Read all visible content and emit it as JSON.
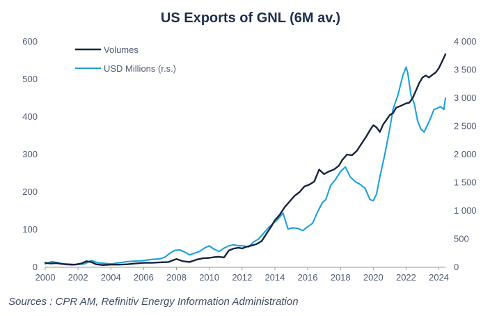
{
  "chart_data": {
    "type": "line",
    "title": "US Exports of GNL (6M av.)",
    "source_text": "Sources : CPR AM, Refinitiv Energy Information Administration",
    "x_ticks": [
      "2000",
      "2002",
      "2004",
      "2006",
      "2008",
      "2010",
      "2012",
      "2014",
      "2016",
      "2018",
      "2020",
      "2022",
      "2024"
    ],
    "left_axis": {
      "ylim": [
        0,
        600
      ],
      "ticks": [
        "0",
        "100",
        "200",
        "300",
        "400",
        "500",
        "600"
      ]
    },
    "right_axis": {
      "ylim": [
        0,
        4000
      ],
      "ticks": [
        "0",
        "500",
        "1 000",
        "1 500",
        "2 000",
        "2 500",
        "3 000",
        "3 500",
        "4 000"
      ]
    },
    "legend": {
      "placement": "top-left",
      "items": [
        "Volumes",
        "USD Millions (r.s.)"
      ]
    },
    "series": [
      {
        "name": "Volumes",
        "axis": "left",
        "color": "#17233f",
        "x": [
          2000.0,
          2000.3,
          2000.7,
          2001.0,
          2001.4,
          2001.8,
          2002.2,
          2002.5,
          2002.8,
          2003.1,
          2003.5,
          2004.0,
          2004.5,
          2005.0,
          2005.5,
          2006.0,
          2006.5,
          2007.0,
          2007.5,
          2008.0,
          2008.4,
          2008.8,
          2009.2,
          2009.6,
          2010.0,
          2010.3,
          2010.6,
          2010.9,
          2011.2,
          2011.5,
          2011.8,
          2012.0,
          2012.3,
          2012.6,
          2012.9,
          2013.2,
          2013.5,
          2013.8,
          2014.0,
          2014.3,
          2014.6,
          2014.9,
          2015.2,
          2015.5,
          2015.8,
          2016.1,
          2016.4,
          2016.7,
          2017.0,
          2017.3,
          2017.6,
          2017.9,
          2018.1,
          2018.4,
          2018.7,
          2019.0,
          2019.3,
          2019.6,
          2019.8,
          2020.0,
          2020.2,
          2020.4,
          2020.6,
          2020.8,
          2021.0,
          2021.2,
          2021.4,
          2021.6,
          2021.8,
          2022.0,
          2022.2,
          2022.4,
          2022.6,
          2022.8,
          2023.0,
          2023.2,
          2023.4,
          2023.6,
          2023.8,
          2024.0,
          2024.2,
          2024.4
        ],
        "values": [
          12,
          10,
          11,
          9,
          8,
          7,
          10,
          16,
          14,
          8,
          6,
          7,
          7,
          8,
          10,
          12,
          12,
          13,
          14,
          22,
          16,
          14,
          20,
          24,
          25,
          27,
          28,
          26,
          45,
          50,
          52,
          50,
          55,
          58,
          62,
          70,
          90,
          110,
          125,
          140,
          160,
          175,
          190,
          200,
          215,
          220,
          228,
          260,
          248,
          255,
          260,
          270,
          285,
          300,
          298,
          310,
          330,
          350,
          365,
          378,
          372,
          360,
          380,
          392,
          405,
          410,
          425,
          428,
          432,
          436,
          438,
          450,
          470,
          490,
          505,
          510,
          505,
          512,
          518,
          530,
          548,
          567
        ]
      },
      {
        "name": "USD Millions (r.s.)",
        "axis": "right",
        "color": "#1ba1db",
        "x": [
          2000.0,
          2000.4,
          2000.8,
          2001.2,
          2001.6,
          2002.0,
          2002.4,
          2002.8,
          2003.2,
          2003.6,
          2004.0,
          2004.5,
          2005.0,
          2005.5,
          2006.0,
          2006.5,
          2007.0,
          2007.3,
          2007.6,
          2007.9,
          2008.2,
          2008.5,
          2008.8,
          2009.1,
          2009.4,
          2009.7,
          2010.0,
          2010.3,
          2010.6,
          2010.9,
          2011.2,
          2011.5,
          2011.8,
          2012.1,
          2012.4,
          2012.7,
          2013.0,
          2013.3,
          2013.6,
          2013.9,
          2014.2,
          2014.5,
          2014.8,
          2015.1,
          2015.4,
          2015.7,
          2016.0,
          2016.3,
          2016.6,
          2016.9,
          2017.1,
          2017.4,
          2017.7,
          2018.0,
          2018.3,
          2018.6,
          2018.9,
          2019.2,
          2019.5,
          2019.8,
          2020.0,
          2020.2,
          2020.4,
          2020.7,
          2021.0,
          2021.2,
          2021.5,
          2021.8,
          2022.0,
          2022.1,
          2022.3,
          2022.5,
          2022.7,
          2022.9,
          2023.1,
          2023.3,
          2023.5,
          2023.7,
          2023.9,
          2024.1,
          2024.3,
          2024.4
        ],
        "values": [
          60,
          100,
          80,
          50,
          40,
          50,
          60,
          120,
          80,
          70,
          60,
          80,
          100,
          110,
          120,
          140,
          150,
          180,
          250,
          300,
          310,
          270,
          220,
          250,
          280,
          340,
          380,
          320,
          280,
          340,
          380,
          400,
          380,
          380,
          360,
          450,
          500,
          600,
          700,
          780,
          860,
          960,
          680,
          700,
          690,
          650,
          720,
          780,
          980,
          1150,
          1200,
          1450,
          1560,
          1700,
          1780,
          1600,
          1520,
          1470,
          1400,
          1200,
          1180,
          1300,
          1600,
          2000,
          2450,
          2800,
          3050,
          3400,
          3550,
          3450,
          3050,
          2900,
          2600,
          2450,
          2400,
          2520,
          2650,
          2800,
          2820,
          2850,
          2800,
          3000
        ]
      }
    ]
  }
}
